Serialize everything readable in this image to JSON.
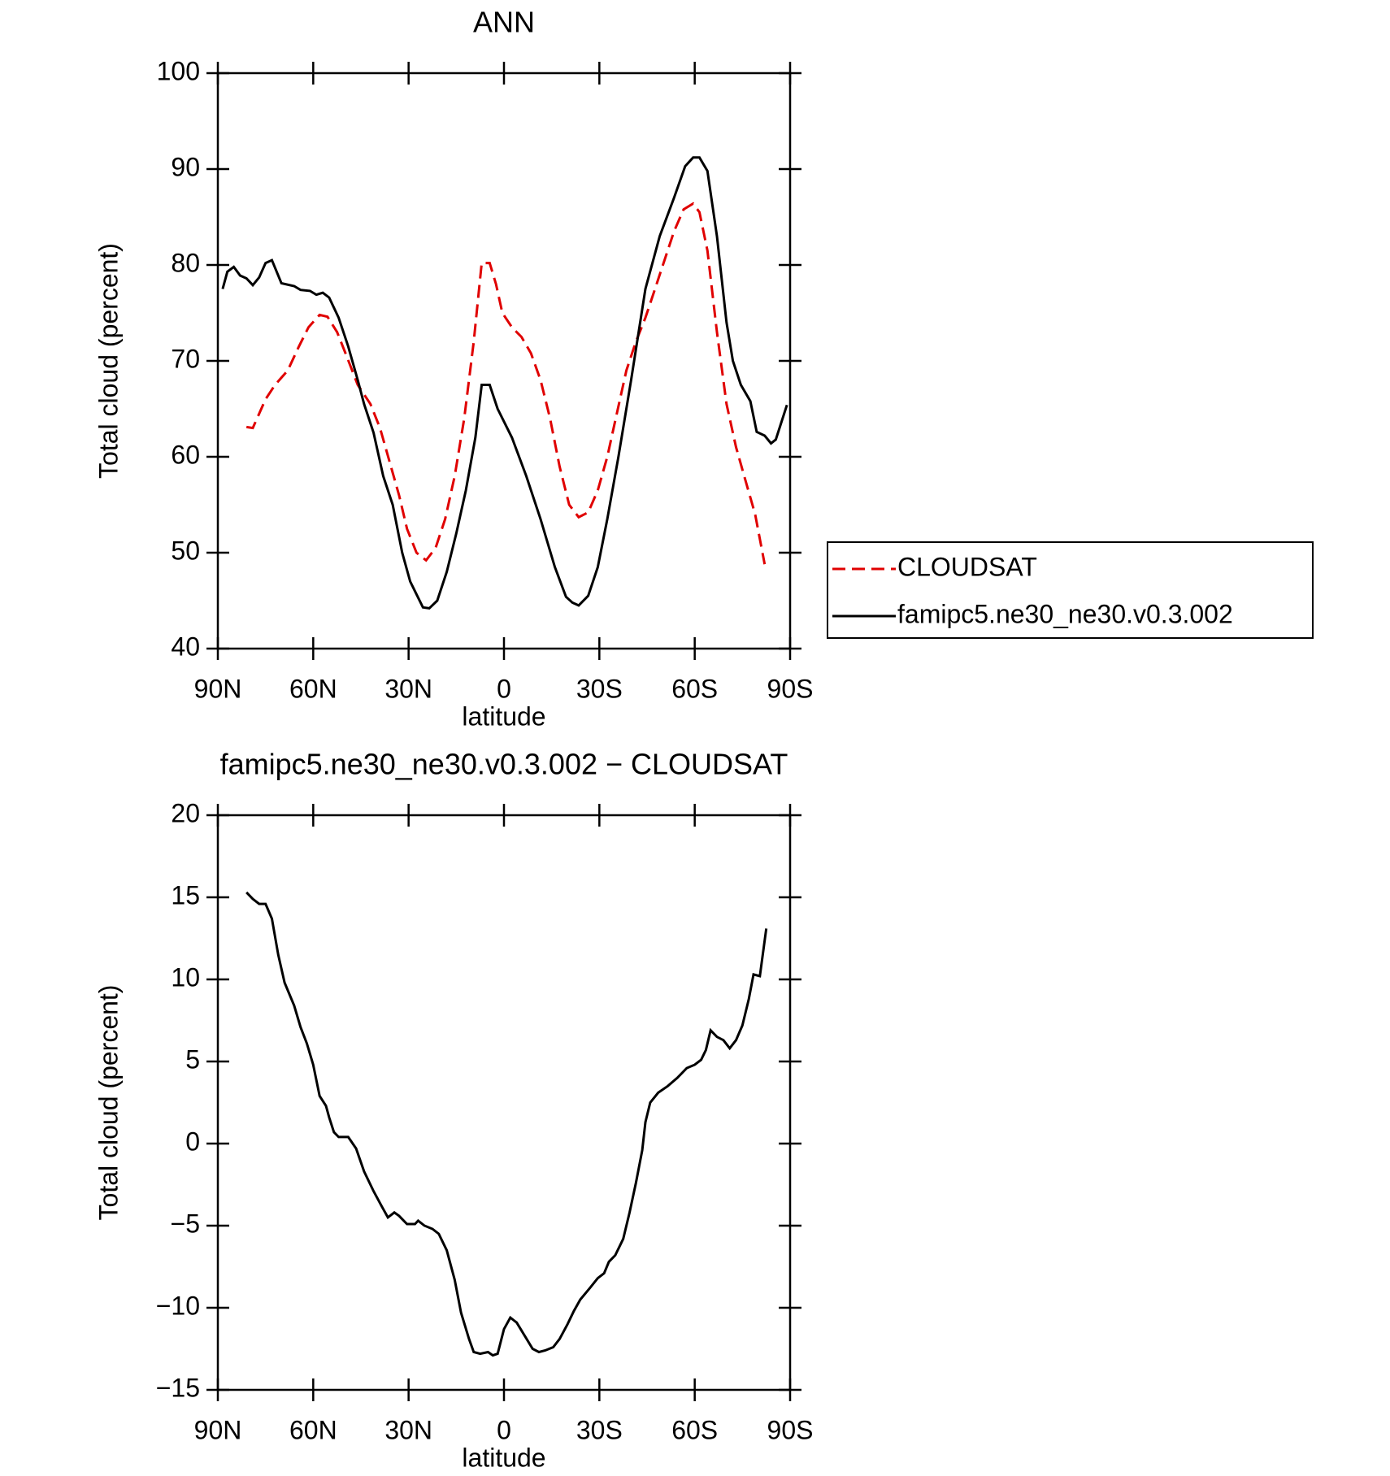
{
  "chart_data": [
    {
      "type": "line",
      "title": "ANN",
      "xlabel": "latitude",
      "ylabel": "Total cloud (percent)",
      "xlim": [
        90,
        -90
      ],
      "xticks": [
        {
          "value": 90,
          "label": "90N"
        },
        {
          "value": 60,
          "label": "60N"
        },
        {
          "value": 30,
          "label": "30N"
        },
        0,
        {
          "value": -30,
          "label": "30S"
        },
        {
          "value": -60,
          "label": "60S"
        },
        {
          "value": -90,
          "label": "90S"
        }
      ],
      "ylim": [
        40,
        100
      ],
      "yticks": [
        40,
        50,
        60,
        70,
        80,
        90,
        100
      ],
      "legend": "right",
      "series": [
        {
          "name": "CLOUDSAT",
          "color": "#e00000",
          "line_style": "dashed",
          "x": [
            81,
            79,
            75,
            72,
            68,
            64.5,
            61.5,
            58,
            55.5,
            52.5,
            49.5,
            46,
            42,
            39,
            36,
            33,
            30.5,
            27.5,
            24.5,
            21.5,
            18.5,
            15.5,
            12.5,
            9.5,
            7,
            4.5,
            2.5,
            0.5,
            -2.5,
            -5.5,
            -8.5,
            -11.5,
            -14.5,
            -17.5,
            -20.5,
            -23.5,
            -26.5,
            -29.5,
            -32.5,
            -35.5,
            -38.5,
            -41.5,
            -44.5,
            -47.5,
            -50.5,
            -53.5,
            -56.5,
            -59.5,
            -61.5,
            -64,
            -67,
            -70,
            -73,
            -76,
            -79,
            -82
          ],
          "values": [
            63.1,
            63.0,
            66,
            67.5,
            69,
            71.5,
            73.5,
            74.8,
            74.6,
            73,
            70.5,
            67.5,
            65.5,
            63,
            59.5,
            56,
            52.5,
            50,
            49.2,
            50.5,
            53.5,
            58,
            64,
            72,
            80.2,
            80.2,
            78,
            75,
            73.5,
            72.5,
            70.8,
            68,
            64,
            59,
            55,
            53.7,
            54.2,
            56.5,
            60,
            64.5,
            69,
            72,
            74.5,
            77.5,
            80.5,
            83.5,
            85.8,
            86.4,
            85.5,
            81.5,
            73,
            65.5,
            61,
            57.5,
            54,
            48.8
          ]
        },
        {
          "name": "famipc5.ne30_ne30.v0.3.002",
          "color": "#000000",
          "line_style": "solid",
          "x": [
            88.5,
            87,
            85,
            83,
            81,
            79,
            77,
            75,
            73,
            70,
            66,
            64,
            61,
            59,
            57,
            55,
            52,
            49,
            46,
            44,
            41,
            38,
            35,
            32,
            29.5,
            25.5,
            23.5,
            21,
            18,
            15,
            12,
            9,
            7,
            4.5,
            2,
            -2.5,
            -7,
            -11.5,
            -16,
            -19.5,
            -21.5,
            -23.5,
            -26.5,
            -29.5,
            -32.5,
            -36,
            -40,
            -44.5,
            -49,
            -53.5,
            -57,
            -59.5,
            -61.5,
            -64,
            -67,
            -70,
            -72,
            -74.5,
            -77.5,
            -79.5,
            -82,
            -84,
            -85.5,
            -89
          ],
          "values": [
            77.5,
            79.3,
            79.8,
            78.9,
            78.6,
            77.9,
            78.7,
            80.2,
            80.5,
            78.1,
            77.8,
            77.4,
            77.3,
            76.9,
            77.1,
            76.6,
            74.5,
            71.5,
            68,
            65.5,
            62.5,
            58,
            55,
            50,
            47,
            44.3,
            44.2,
            45,
            48,
            52,
            56.5,
            62,
            67.5,
            67.5,
            65,
            62,
            58,
            53.5,
            48.5,
            45.4,
            44.8,
            44.5,
            45.5,
            48.5,
            53.5,
            60,
            68,
            77.5,
            83,
            87,
            90.3,
            91.2,
            91.2,
            89.8,
            83,
            74,
            70,
            67.5,
            65.8,
            62.6,
            62.2,
            61.4,
            61.8,
            65.4
          ]
        }
      ]
    },
    {
      "type": "line",
      "title": "famipc5.ne30_ne30.v0.3.002 − CLOUDSAT",
      "xlabel": "latitude",
      "ylabel": "Total cloud (percent)",
      "xlim": [
        90,
        -90
      ],
      "xticks": [
        {
          "value": 90,
          "label": "90N"
        },
        {
          "value": 60,
          "label": "60N"
        },
        {
          "value": 30,
          "label": "30N"
        },
        0,
        {
          "value": -30,
          "label": "30S"
        },
        {
          "value": -60,
          "label": "60S"
        },
        {
          "value": -90,
          "label": "90S"
        }
      ],
      "ylim": [
        -15,
        20
      ],
      "yticks": [
        {
          "value": -15,
          "label": "−15"
        },
        {
          "value": -10,
          "label": "−10"
        },
        {
          "value": -5,
          "label": "−5"
        },
        0,
        5,
        10,
        15,
        20
      ],
      "series": [
        {
          "color": "#000000",
          "line_style": "solid",
          "x": [
            81,
            79,
            77,
            75,
            73,
            71,
            69,
            66,
            64,
            62,
            60,
            58,
            56,
            55,
            53.5,
            52,
            49,
            46.5,
            44,
            41,
            38.5,
            36.5,
            34.5,
            33,
            30.5,
            28,
            27,
            25,
            22.5,
            20.5,
            18,
            15.5,
            13.5,
            11,
            9.5,
            7.5,
            5,
            3.5,
            2,
            0,
            -2,
            -4,
            -6.5,
            -9,
            -11,
            -13,
            -15.5,
            -17.5,
            -20,
            -22,
            -24,
            -27,
            -29.5,
            -31.5,
            -33,
            -35,
            -37.5,
            -39.5,
            -41.5,
            -43.5,
            -44.5,
            -46,
            -48.5,
            -51.5,
            -54.5,
            -57.5,
            -60,
            -62,
            -63.5,
            -65,
            -67,
            -69,
            -71,
            -73,
            -75,
            -77,
            -78.5,
            -80.5,
            -82.5
          ],
          "values": [
            15.3,
            14.9,
            14.6,
            14.6,
            13.7,
            11.5,
            9.8,
            8.4,
            7.1,
            6.1,
            4.8,
            2.9,
            2.3,
            1.6,
            0.7,
            0.4,
            0.4,
            -0.3,
            -1.7,
            -2.9,
            -3.8,
            -4.5,
            -4.2,
            -4.4,
            -4.9,
            -4.9,
            -4.7,
            -5,
            -5.2,
            -5.5,
            -6.5,
            -8.3,
            -10.3,
            -11.9,
            -12.7,
            -12.8,
            -12.7,
            -12.9,
            -12.8,
            -11.3,
            -10.6,
            -10.9,
            -11.7,
            -12.5,
            -12.7,
            -12.6,
            -12.4,
            -11.9,
            -11,
            -10.2,
            -9.5,
            -8.8,
            -8.2,
            -7.9,
            -7.2,
            -6.8,
            -5.8,
            -4.2,
            -2.4,
            -0.4,
            1.3,
            2.5,
            3.1,
            3.5,
            4,
            4.6,
            4.8,
            5.1,
            5.7,
            6.9,
            6.5,
            6.3,
            5.8,
            6.3,
            7.2,
            8.8,
            10.3,
            10.2,
            13.1
          ]
        }
      ]
    }
  ]
}
